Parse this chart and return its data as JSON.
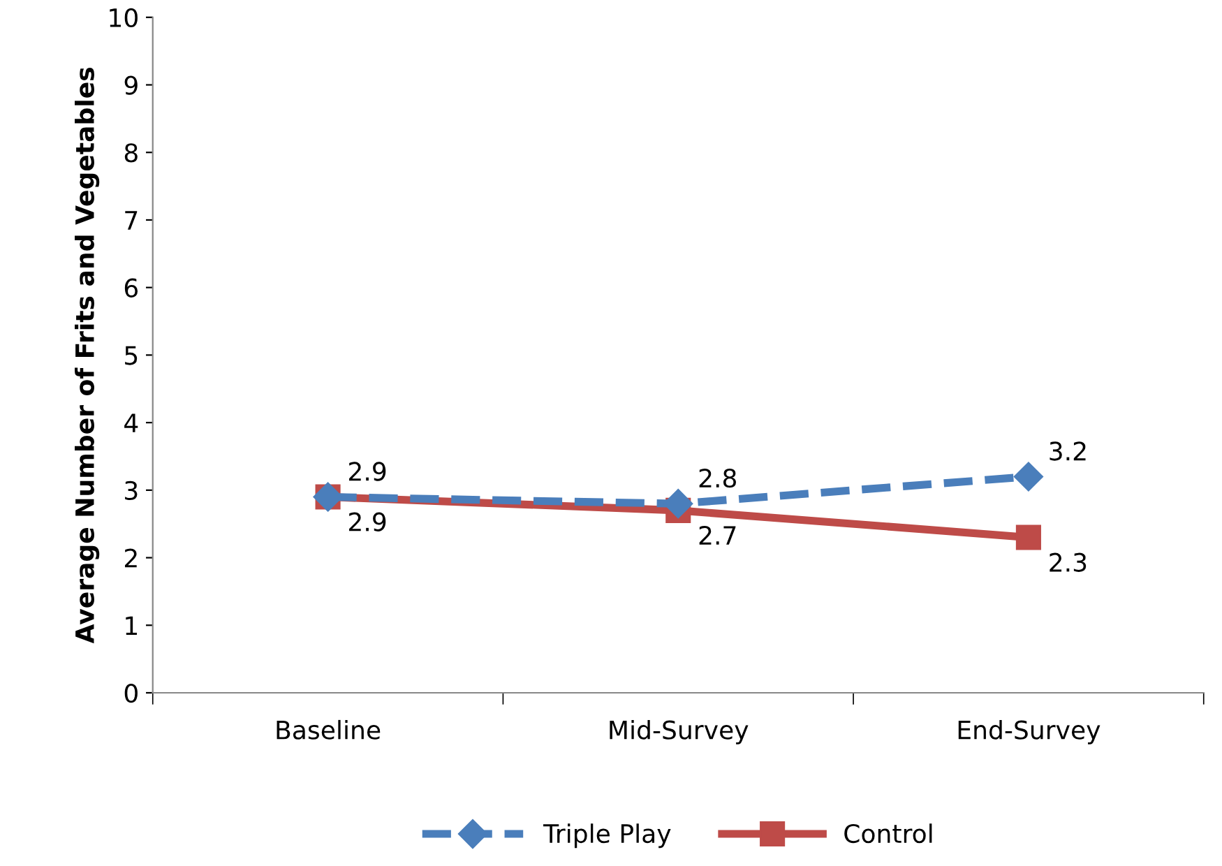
{
  "chart_data": {
    "type": "line",
    "ylabel": "Average Number of Frits and Vegetables",
    "categories": [
      "Baseline",
      "Mid-Survey",
      "End-Survey"
    ],
    "series": [
      {
        "name": "Triple Play",
        "color": "#4a7ebb",
        "values": [
          2.9,
          2.8,
          3.2
        ],
        "marker": "diamond",
        "line_style": "dashed"
      },
      {
        "name": "Control",
        "color": "#be4b48",
        "values": [
          2.9,
          2.7,
          2.3
        ],
        "marker": "square",
        "line_style": "solid"
      }
    ],
    "ylim": [
      0,
      10
    ],
    "yticks": [
      0,
      1,
      2,
      3,
      4,
      5,
      6,
      7,
      8,
      9,
      10
    ],
    "grid": false,
    "legend": "bottom",
    "data_labels": true
  }
}
